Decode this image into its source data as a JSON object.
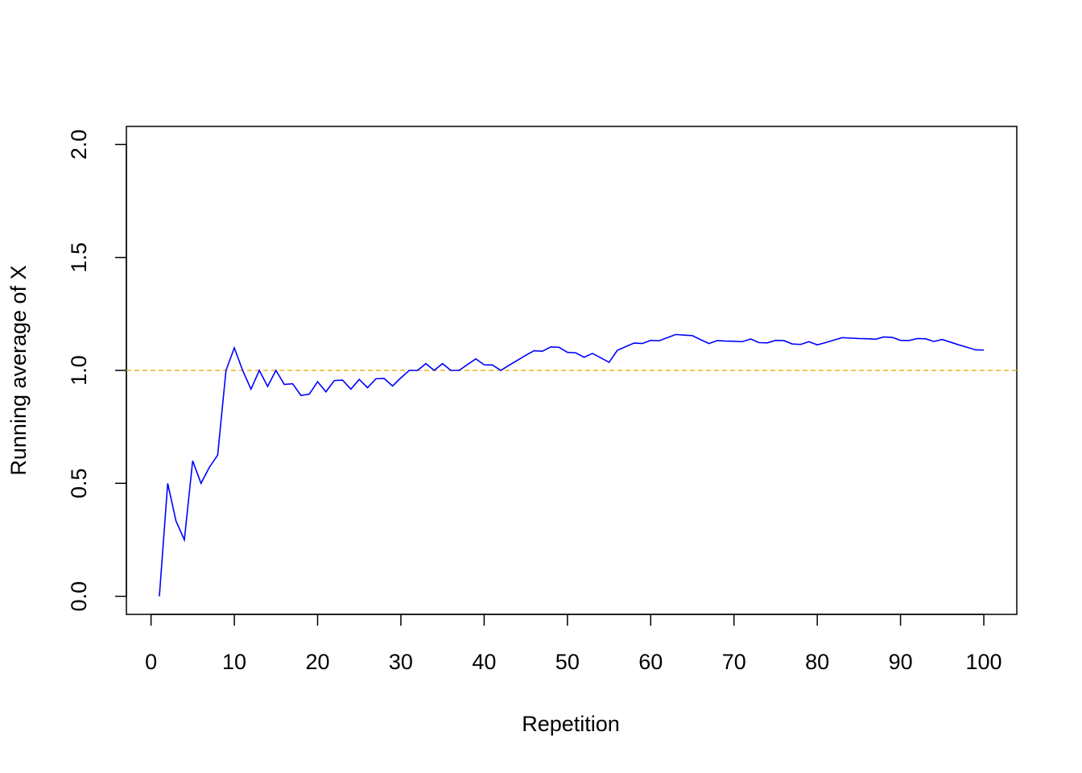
{
  "chart_data": {
    "type": "line",
    "xlabel": "Repetition",
    "ylabel": "Running average of X",
    "x": [
      1,
      2,
      3,
      4,
      5,
      6,
      7,
      8,
      9,
      10,
      11,
      12,
      13,
      14,
      15,
      16,
      17,
      18,
      19,
      20,
      21,
      22,
      23,
      24,
      25,
      26,
      27,
      28,
      29,
      30,
      31,
      32,
      33,
      34,
      35,
      36,
      37,
      38,
      39,
      40,
      41,
      42,
      43,
      44,
      45,
      46,
      47,
      48,
      49,
      50,
      51,
      52,
      53,
      54,
      55,
      56,
      57,
      58,
      59,
      60,
      61,
      62,
      63,
      64,
      65,
      66,
      67,
      68,
      69,
      70,
      71,
      72,
      73,
      74,
      75,
      76,
      77,
      78,
      79,
      80,
      81,
      82,
      83,
      84,
      85,
      86,
      87,
      88,
      89,
      90,
      91,
      92,
      93,
      94,
      95,
      96,
      97,
      98,
      99,
      100
    ],
    "values": [
      0,
      0.5,
      0.333,
      0.25,
      0.6,
      0.5,
      0.571,
      0.625,
      1.0,
      1.1,
      1.0,
      0.917,
      1.0,
      0.929,
      1.0,
      0.938,
      0.941,
      0.889,
      0.895,
      0.95,
      0.905,
      0.955,
      0.957,
      0.917,
      0.96,
      0.923,
      0.963,
      0.964,
      0.931,
      0.967,
      1.0,
      1.0,
      1.03,
      1.0,
      1.03,
      1.0,
      1.0,
      1.026,
      1.051,
      1.025,
      1.024,
      1.0,
      1.023,
      1.045,
      1.067,
      1.087,
      1.085,
      1.104,
      1.102,
      1.08,
      1.078,
      1.058,
      1.075,
      1.056,
      1.036,
      1.089,
      1.105,
      1.121,
      1.119,
      1.133,
      1.131,
      1.145,
      1.159,
      1.156,
      1.154,
      1.136,
      1.119,
      1.132,
      1.13,
      1.129,
      1.127,
      1.139,
      1.123,
      1.122,
      1.133,
      1.132,
      1.117,
      1.115,
      1.127,
      1.113,
      1.123,
      1.134,
      1.145,
      1.143,
      1.141,
      1.14,
      1.138,
      1.148,
      1.146,
      1.133,
      1.132,
      1.141,
      1.14,
      1.128,
      1.137,
      1.125,
      1.113,
      1.102,
      1.091,
      1.09
    ],
    "color": "#0000ff",
    "hline": {
      "value": 1,
      "color": "#e6b422",
      "linestyle": "dashed"
    },
    "xlim": [
      -2.96,
      103.96
    ],
    "xticks": [
      0,
      10,
      20,
      30,
      40,
      50,
      60,
      70,
      80,
      90,
      100
    ],
    "ylim": [
      -0.08,
      2.08
    ],
    "yticks": [
      {
        "value": 0,
        "label": "0.0"
      },
      0.5,
      {
        "value": 1,
        "label": "1.0"
      },
      1.5,
      {
        "value": 2,
        "label": "2.0"
      }
    ],
    "grid": false
  }
}
